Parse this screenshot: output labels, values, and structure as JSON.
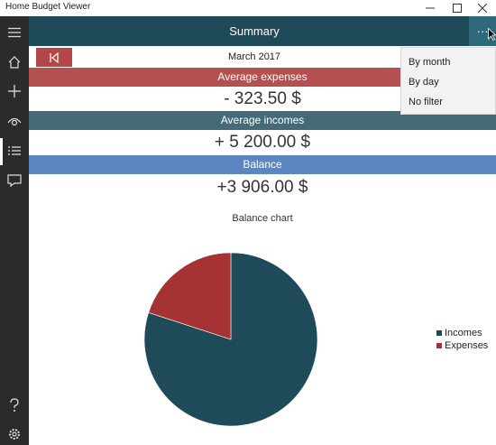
{
  "window": {
    "title": "Home Budget Viewer"
  },
  "header": {
    "title": "Summary",
    "more_label": "···"
  },
  "period": {
    "label": "March 2017"
  },
  "expenses": {
    "label": "Average expenses",
    "value": "- 323.50 $",
    "color": "#b55050"
  },
  "incomes": {
    "label": "Average incomes",
    "value": "+ 5 200.00 $",
    "color": "#456b79"
  },
  "balance": {
    "label": "Balance",
    "value": "+3 906.00 $",
    "color": "#5b86c0"
  },
  "menu": {
    "items": [
      "By month",
      "By day",
      "No filter"
    ]
  },
  "nav": {
    "items": [
      "menu-icon",
      "home-icon",
      "add-icon",
      "view-icon",
      "list-icon",
      "feedback-icon"
    ],
    "bottom": [
      "help-icon",
      "settings-icon"
    ]
  },
  "chart_data": {
    "type": "pie",
    "title": "Balance chart",
    "labels": [
      "Incomes",
      "Expenses"
    ],
    "values": [
      80,
      20
    ],
    "colors": [
      "#1e4a5a",
      "#a53333"
    ],
    "legend_position": "right"
  }
}
